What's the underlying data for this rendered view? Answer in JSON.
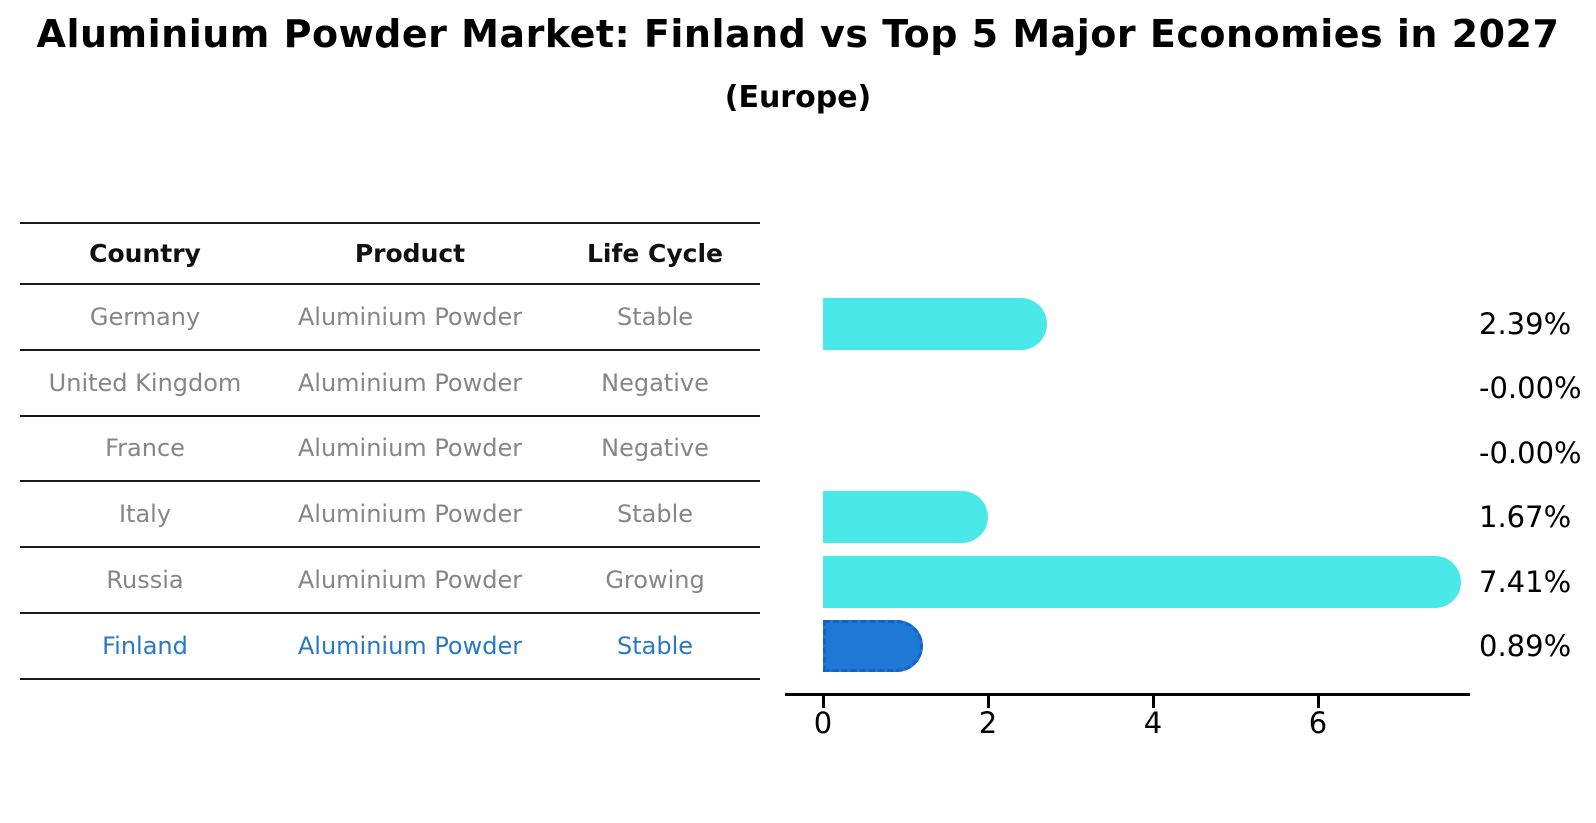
{
  "header": {
    "title": "Aluminium Powder Market: Finland vs Top 5 Major Economies in 2027",
    "subtitle": "(Europe)"
  },
  "table": {
    "columns": [
      "Country",
      "Product",
      "Life Cycle"
    ],
    "rows": [
      {
        "country": "Germany",
        "product": "Aluminium Powder",
        "life_cycle": "Stable",
        "highlight": false
      },
      {
        "country": "United Kingdom",
        "product": "Aluminium Powder",
        "life_cycle": "Negative",
        "highlight": false
      },
      {
        "country": "France",
        "product": "Aluminium Powder",
        "life_cycle": "Negative",
        "highlight": false
      },
      {
        "country": "Italy",
        "product": "Aluminium Powder",
        "life_cycle": "Stable",
        "highlight": false
      },
      {
        "country": "Russia",
        "product": "Aluminium Powder",
        "life_cycle": "Growing",
        "highlight": false
      },
      {
        "country": "Finland",
        "product": "Aluminium Powder",
        "life_cycle": "Stable",
        "highlight": true
      }
    ]
  },
  "chart_data": {
    "type": "bar",
    "orientation": "horizontal",
    "title": "Aluminium Powder Market: Finland vs Top 5 Major Economies in 2027",
    "subtitle": "(Europe)",
    "categories": [
      "Germany",
      "United Kingdom",
      "France",
      "Italy",
      "Russia",
      "Finland"
    ],
    "values": [
      2.39,
      0.0,
      0.0,
      1.67,
      7.41,
      0.89
    ],
    "value_labels": [
      "2.39%",
      "-0.00%",
      "-0.00%",
      "1.67%",
      "7.41%",
      "0.89%"
    ],
    "x_ticks": [
      0,
      2,
      4,
      6
    ],
    "xlim": [
      0,
      7.8
    ],
    "grid": false,
    "legend": "none",
    "bar_color": "#4ae8e8",
    "highlight_bar_color": "#1e78d6",
    "highlight_index": 5,
    "highlight_text_color": "#2878c8",
    "axis_color": "#000000"
  }
}
